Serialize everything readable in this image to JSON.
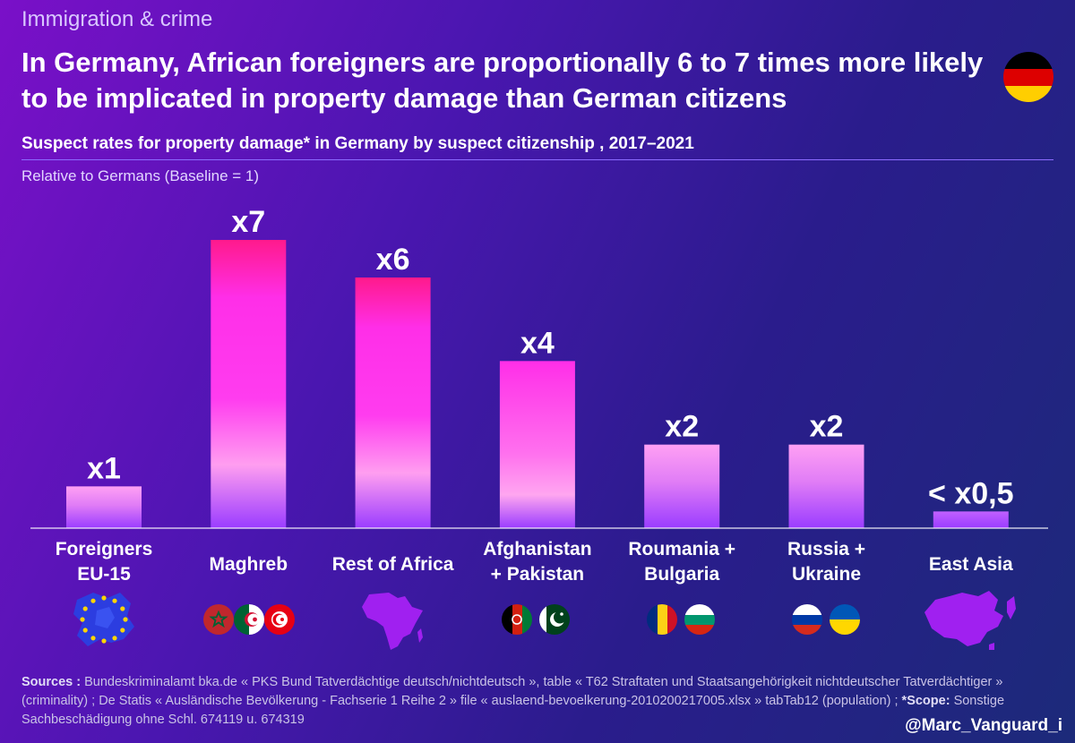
{
  "header": {
    "category": "Immigration & crime",
    "title": "In Germany, African foreigners are proportionally 6 to 7 times more likely to be implicated in property damage than German citizens"
  },
  "chart_data": {
    "type": "bar",
    "title": "Suspect rates for property damage* in Germany by suspect citizenship , 2017–2021",
    "subtitle": "Relative to Germans (Baseline = 1)",
    "categories": [
      [
        "Foreigners",
        "EU-15"
      ],
      [
        "Maghreb"
      ],
      [
        "Rest of Africa"
      ],
      [
        "Afghanistan",
        "+ Pakistan"
      ],
      [
        "Roumania +",
        "Bulgaria"
      ],
      [
        "Russia +",
        "Ukraine"
      ],
      [
        "East Asia"
      ]
    ],
    "values": [
      1,
      6.9,
      6,
      4,
      2,
      2,
      0.4
    ],
    "data_labels": [
      "x1",
      "x7",
      "x6",
      "x4",
      "x2",
      "x2",
      "< x0,5"
    ],
    "ylim": [
      0,
      7.5
    ],
    "grid": false,
    "legend": "none"
  },
  "colors": {
    "bar_top_hot": "#ff1a8c",
    "bar_mid": "#ff2ee8",
    "bar_light": "#ff9ef0",
    "bar_bottom": "#9a3cff",
    "baseline": "#ffffff"
  },
  "icons": [
    "eu-map-icon",
    "maghreb-flags-icon",
    "africa-map-icon",
    "afghanistan-pakistan-flags-icon",
    "romania-bulgaria-flags-icon",
    "russia-ukraine-flags-icon",
    "east-asia-map-icon",
    "germany-flag-icon"
  ],
  "footer": {
    "sources_label": "Sources :",
    "sources_text": " Bundeskriminalamt bka.de « PKS Bund Tatverdächtige deutsch/nichtdeutsch », table « T62 Straftaten und Staatsangehörigkeit nichtdeutscher Tatverdächtiger » (criminality) ; De Statis « Ausländische Bevölkerung - Fachserie 1 Reihe 2 » file « auslaend-bevoelkerung-2010200217005.xlsx » tabTab12 (population) ; ",
    "scope_label": "*Scope:",
    "scope_text": " Sonstige Sachbeschädigung ohne Schl. 674119 u. 674319",
    "handle": "@Marc_Vanguard_i"
  }
}
